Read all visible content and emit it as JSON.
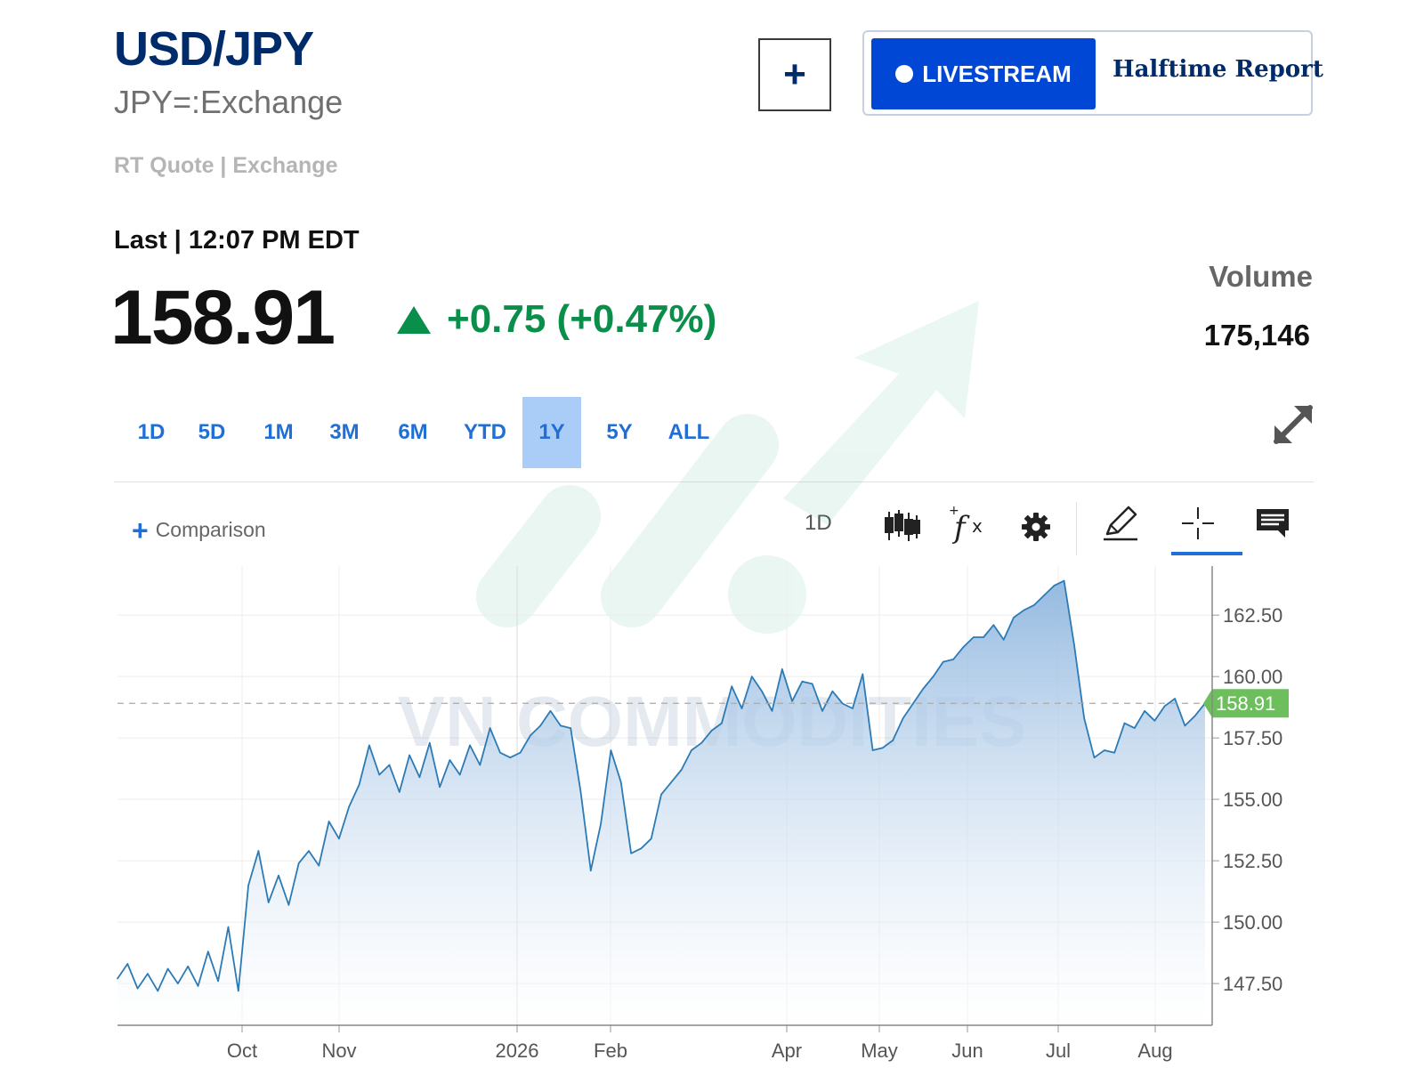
{
  "header": {
    "symbol": "USD/JPY",
    "exchange": "JPY=:Exchange",
    "quote_source": "RT Quote | Exchange",
    "last_time": "Last | 12:07 PM EDT"
  },
  "quote": {
    "price": "158.91",
    "change": "+0.75 (+0.47%)",
    "change_direction": "up",
    "up_color": "#0a8f4b"
  },
  "actions": {
    "add_label": "+",
    "livestream_label": "LIVESTREAM",
    "halftime_label": "Halftime Report"
  },
  "volume": {
    "label": "Volume",
    "value": "175,146"
  },
  "ranges": {
    "items": [
      "1D",
      "5D",
      "1M",
      "3M",
      "6M",
      "YTD",
      "1Y",
      "5Y",
      "ALL"
    ],
    "selected": "1Y"
  },
  "toolbar": {
    "comparison_label": "Comparison",
    "interval_label": "1D",
    "icons": [
      "candlestick-icon",
      "function-icon",
      "gear-icon",
      "pencil-icon",
      "crosshair-icon",
      "comment-icon",
      "expand-icon"
    ],
    "accent_color": "#1f6fd6"
  },
  "watermark": {
    "text": "VN COMMODITIES"
  },
  "chart_data": {
    "type": "area",
    "series": [
      {
        "x": [
          "Sep 2",
          "Sep 4",
          "Sep 8",
          "Sep 10",
          "Sep 12",
          "Sep 16",
          "Sep 18",
          "Sep 22",
          "Sep 24",
          "Sep 26",
          "Sep 30",
          "Oct 2",
          "Oct 6",
          "Oct 8",
          "Oct 10",
          "Oct 14",
          "Oct 16",
          "Oct 20",
          "Oct 22",
          "Oct 24",
          "Oct 28",
          "Oct 30",
          "Nov 3",
          "Nov 5",
          "Nov 7",
          "Nov 11",
          "Nov 13",
          "Nov 17",
          "Nov 19",
          "Nov 21",
          "Nov 25",
          "Nov 27",
          "Dec 1",
          "Dec 3",
          "Dec 5",
          "Dec 9",
          "Dec 11",
          "Dec 15",
          "Dec 17",
          "Dec 19",
          "Dec 23",
          "Dec 29",
          "Jan 2",
          "Jan 6",
          "Jan 9",
          "Jan 13",
          "Jan 16",
          "Jan 20",
          "Jan 23",
          "Jan 27",
          "Jan 30",
          "Feb 3",
          "Feb 6",
          "Feb 10",
          "Feb 13",
          "Feb 17",
          "Feb 20",
          "Feb 24",
          "Feb 27",
          "Mar 3",
          "Mar 6",
          "Mar 10",
          "Mar 13",
          "Mar 17",
          "Mar 20",
          "Mar 24",
          "Mar 27",
          "Mar 31",
          "Apr 3",
          "Apr 7",
          "Apr 10",
          "Apr 14",
          "Apr 17",
          "Apr 21",
          "Apr 24",
          "Apr 28",
          "May 1",
          "May 5",
          "May 8",
          "May 12",
          "May 15",
          "May 19",
          "May 22",
          "May 26",
          "May 29",
          "Jun 2",
          "Jun 5",
          "Jun 9",
          "Jun 12",
          "Jun 16",
          "Jun 19",
          "Jun 23",
          "Jun 26",
          "Jun 30",
          "Jul 3",
          "Jul 7",
          "Jul 10",
          "Jul 14",
          "Jul 17",
          "Jul 21",
          "Jul 24",
          "Jul 28",
          "Jul 30",
          "Aug 1",
          "Aug 4",
          "Aug 7",
          "Aug 11",
          "Aug 13",
          "Aug 15"
        ],
        "y": [
          147.7,
          148.3,
          147.3,
          147.9,
          147.2,
          148.1,
          147.5,
          148.2,
          147.4,
          148.8,
          147.6,
          149.8,
          147.2,
          151.5,
          152.9,
          150.8,
          151.9,
          150.7,
          152.4,
          152.9,
          152.3,
          154.1,
          153.4,
          154.7,
          155.6,
          157.2,
          156.0,
          156.4,
          155.3,
          156.8,
          155.9,
          157.3,
          155.5,
          156.6,
          156.0,
          157.2,
          156.4,
          157.9,
          156.9,
          156.7,
          156.9,
          157.6,
          158.0,
          158.6,
          158.0,
          157.9,
          155.3,
          152.1,
          154.0,
          157.0,
          155.7,
          152.8,
          153.0,
          153.4,
          155.2,
          155.7,
          156.2,
          157.0,
          157.3,
          157.8,
          158.1,
          159.6,
          158.7,
          160.0,
          159.4,
          158.6,
          160.3,
          159.0,
          159.8,
          159.7,
          158.6,
          159.4,
          158.9,
          158.7,
          160.1,
          157.0,
          157.1,
          157.4,
          158.3,
          158.9,
          159.5,
          160.0,
          160.6,
          160.7,
          161.2,
          161.6,
          161.6,
          162.1,
          161.5,
          162.4,
          162.7,
          162.9,
          163.3,
          163.7,
          163.9,
          161.3,
          158.3,
          156.7,
          157.0,
          156.9,
          158.1,
          157.9,
          158.6,
          158.2,
          158.8,
          159.1,
          158.0,
          158.4,
          158.91
        ]
      }
    ],
    "last_value": "158.91",
    "last_value_color": "#6cbf5c",
    "y_ticks": [
      "162.50",
      "160.00",
      "157.50",
      "155.00",
      "152.50",
      "150.00",
      "147.50"
    ],
    "x_ticks": [
      "Oct",
      "Nov",
      "2026",
      "Feb",
      "Apr",
      "May",
      "Jun",
      "Jul",
      "Aug"
    ],
    "ylim": [
      145.8,
      164.5
    ],
    "grid": true,
    "line_color": "#2c7bb6",
    "fill_color": "#9bbfe3"
  }
}
